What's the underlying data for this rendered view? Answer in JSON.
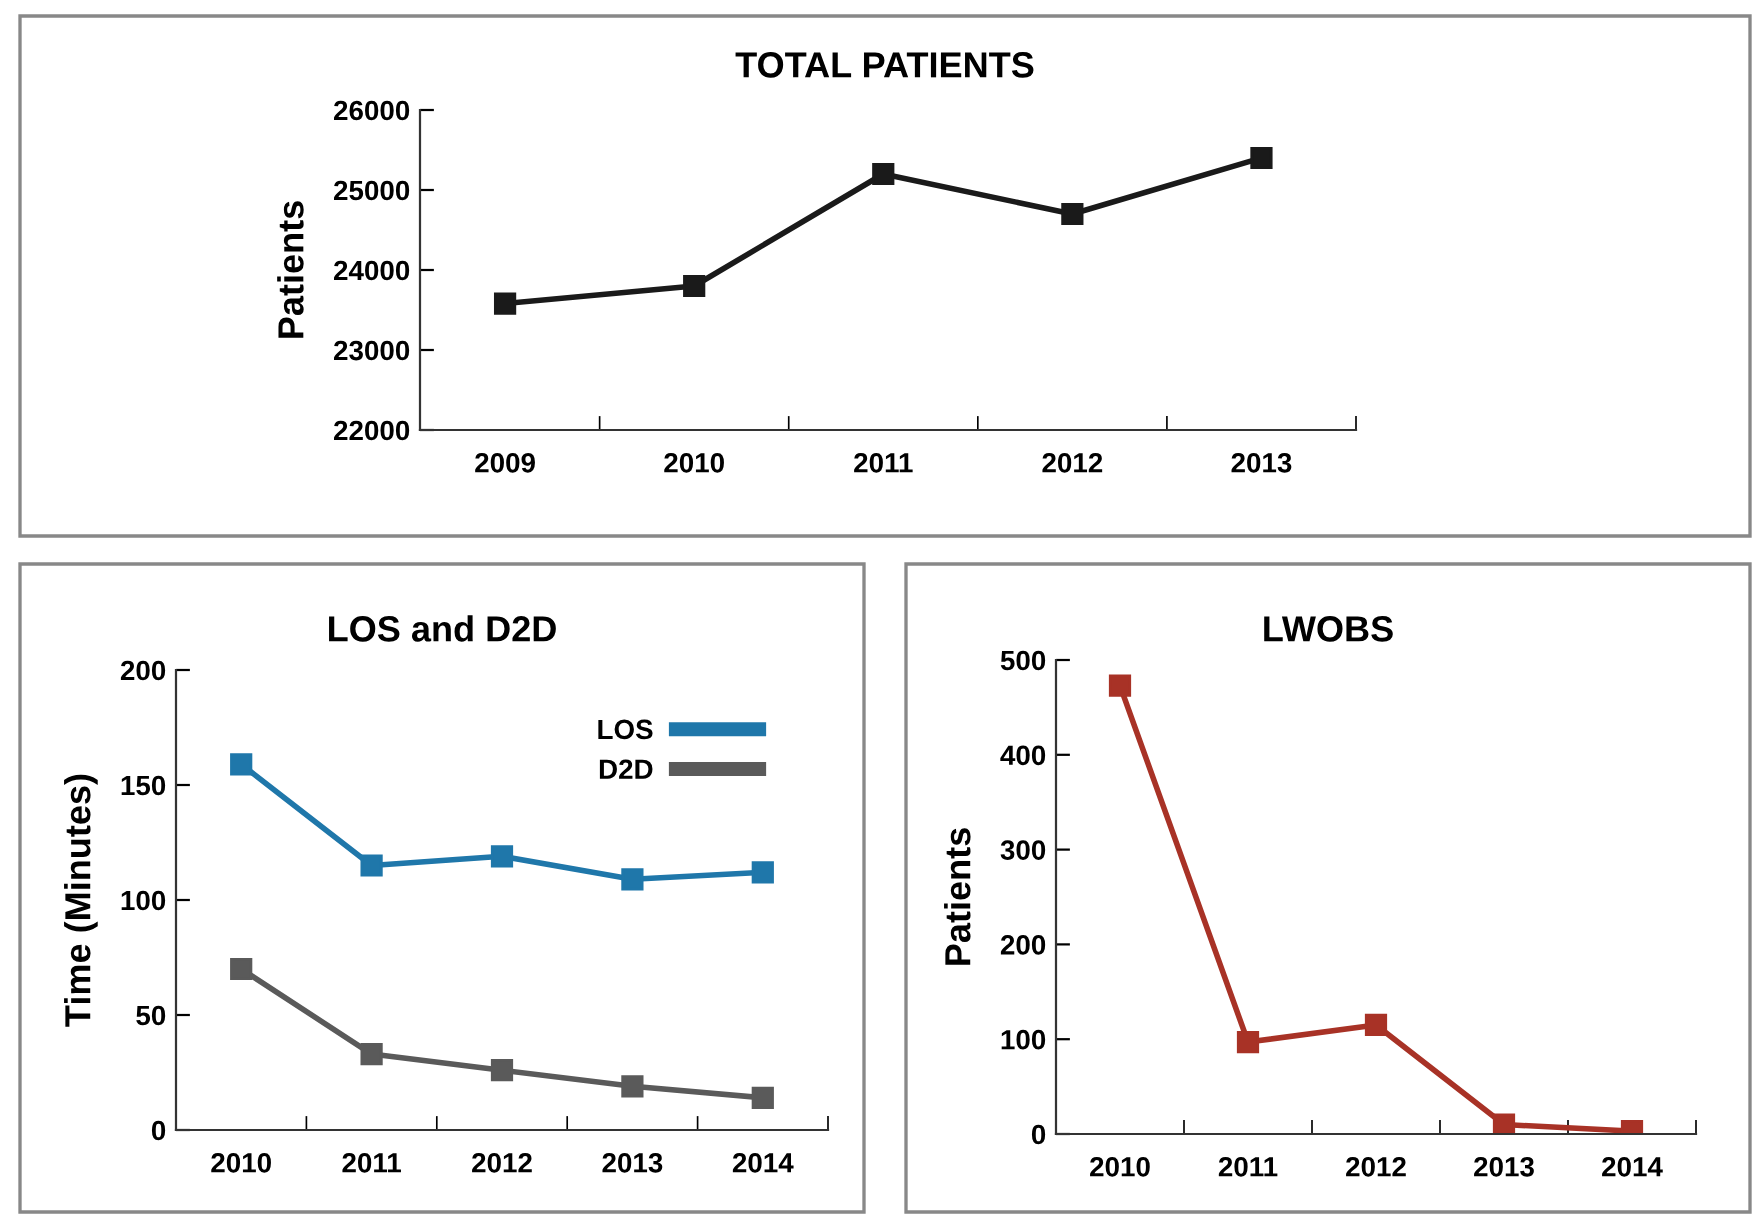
{
  "chart_data": [
    {
      "type": "line",
      "title": "TOTAL PATIENTS",
      "ylabel": "Patients",
      "categories": [
        "2009",
        "2010",
        "2011",
        "2012",
        "2013"
      ],
      "marker": "square",
      "ylim": [
        22000,
        26000
      ],
      "yticks": [
        22000,
        23000,
        24000,
        25000,
        26000
      ],
      "series": [
        {
          "color": "#1a1a1a",
          "values": [
            23580,
            23800,
            25200,
            24700,
            25400
          ]
        }
      ]
    },
    {
      "type": "line",
      "title": "LOS and D2D",
      "ylabel": "Time (Minutes)",
      "categories": [
        "2010",
        "2011",
        "2012",
        "2013",
        "2014"
      ],
      "marker": "square",
      "ylim": [
        0,
        200
      ],
      "yticks": [
        0,
        50,
        100,
        150,
        200
      ],
      "legend": "top right",
      "series": [
        {
          "name": "LOS",
          "color": "#1f77aa",
          "values": [
            159,
            115,
            119,
            109,
            112
          ]
        },
        {
          "name": "D2D",
          "color": "#5a5a5a",
          "values": [
            70,
            33,
            26,
            19,
            14
          ]
        }
      ]
    },
    {
      "type": "line",
      "title": "LWOBS",
      "ylabel": "Patients",
      "categories": [
        "2010",
        "2011",
        "2012",
        "2013",
        "2014"
      ],
      "marker": "square",
      "ylim": [
        0,
        500
      ],
      "yticks": [
        0,
        100,
        200,
        300,
        400,
        500
      ],
      "series": [
        {
          "color": "#a83226",
          "values": [
            473,
            97,
            115,
            10,
            3
          ]
        }
      ]
    }
  ]
}
